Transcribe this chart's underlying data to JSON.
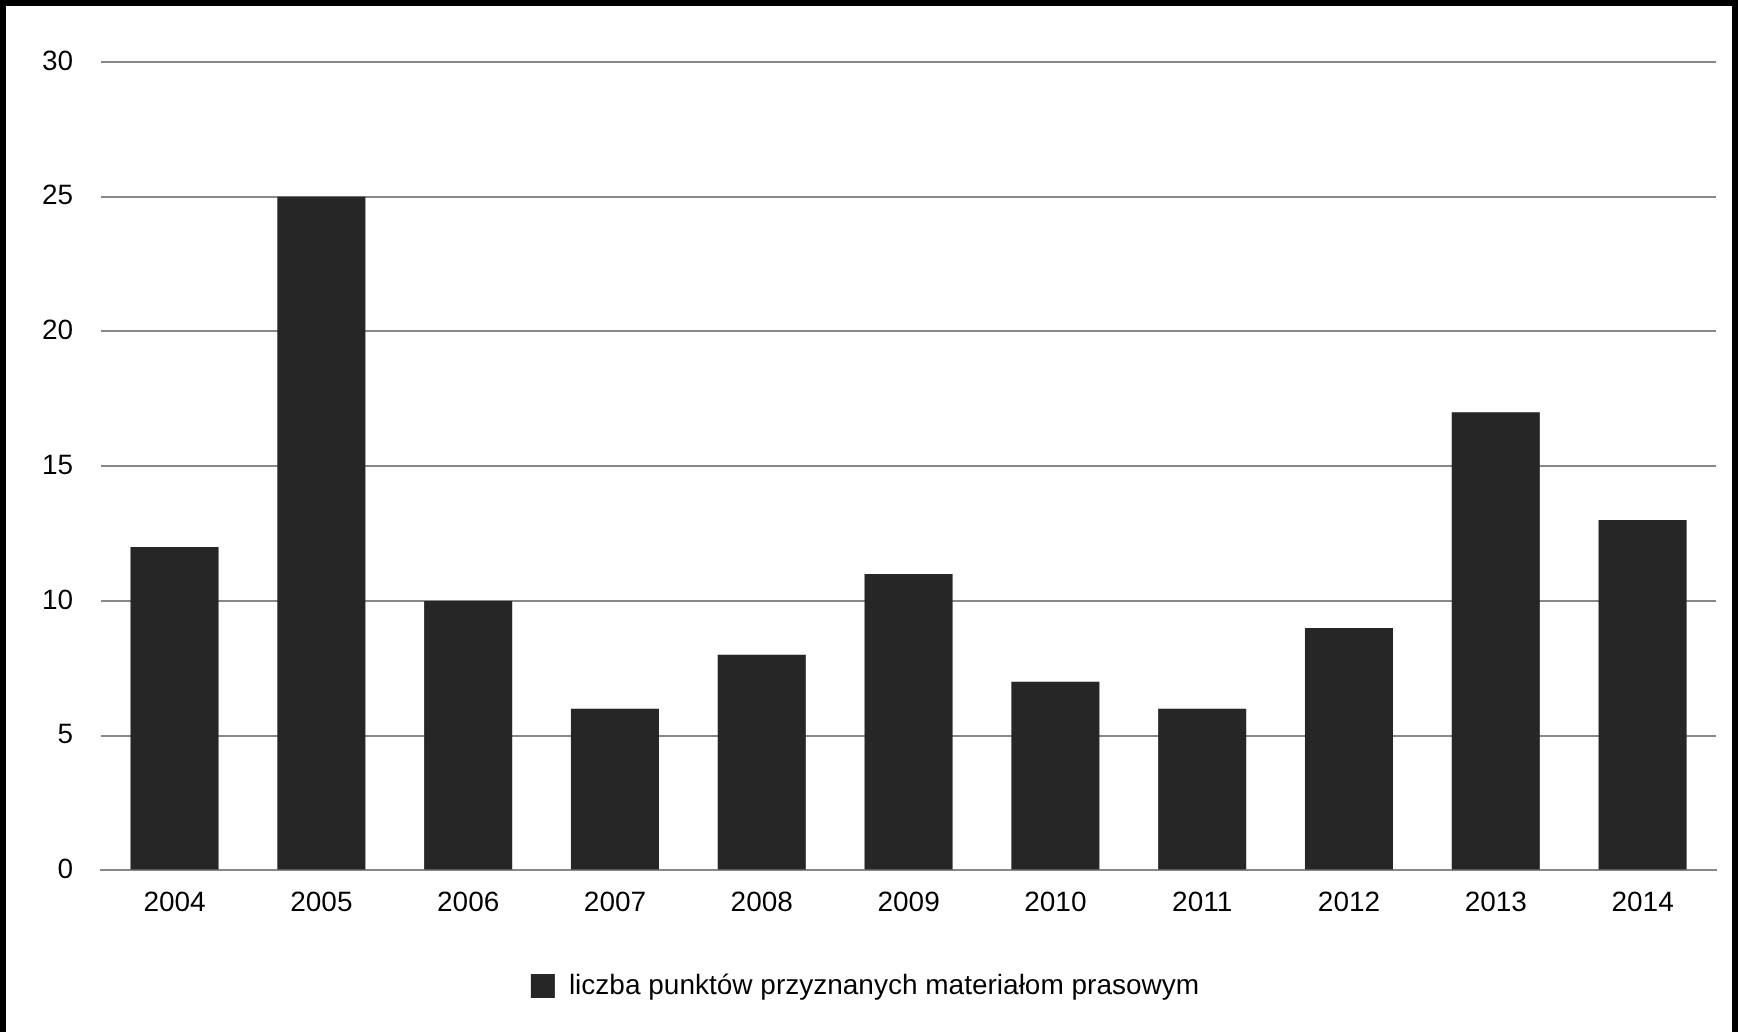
{
  "chart_data": {
    "type": "bar",
    "categories": [
      "2004",
      "2005",
      "2006",
      "2007",
      "2008",
      "2009",
      "2010",
      "2011",
      "2012",
      "2013",
      "2014"
    ],
    "series": [
      {
        "name": "liczba punktów przyznanych materiałom prasowym",
        "color": "#262626",
        "values": [
          12,
          25,
          10,
          6,
          8,
          11,
          7,
          6,
          9,
          17,
          13
        ]
      }
    ],
    "ylim": [
      0,
      30
    ],
    "yticks": [
      0,
      5,
      10,
      15,
      20,
      25,
      30
    ],
    "grid": "y",
    "legend": "bottom"
  }
}
